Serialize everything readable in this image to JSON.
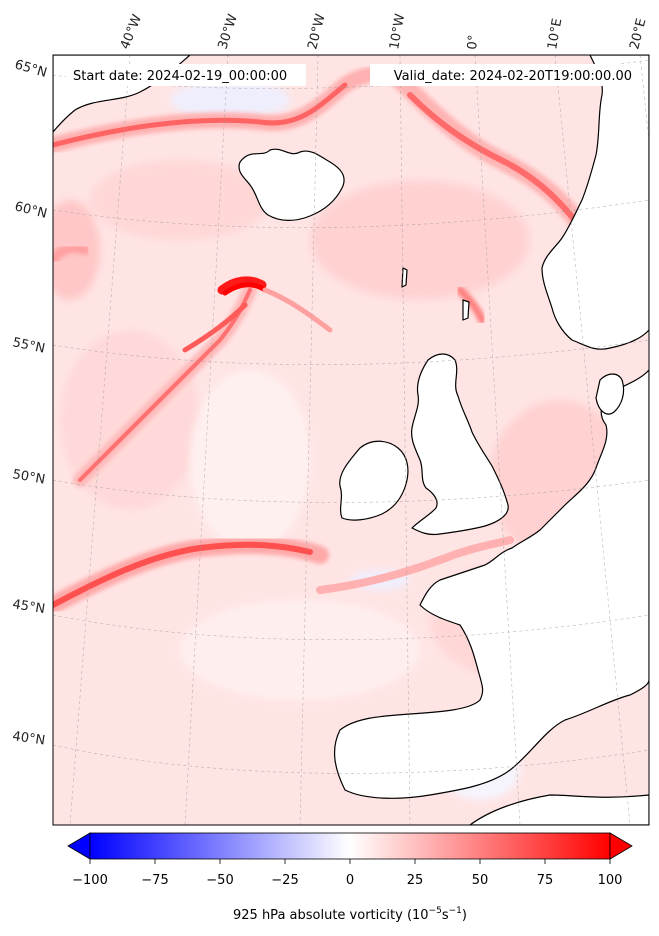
{
  "header": {
    "start_date": "Start date: 2024-02-19_00:00:00",
    "valid_date": "Valid_date: 2024-02-20T19:00:00.00"
  },
  "longitude_labels": [
    "40°W",
    "30°W",
    "20°W",
    "10°W",
    "0°",
    "10°E",
    "20°E"
  ],
  "latitude_labels": [
    "65°N",
    "60°N",
    "55°N",
    "50°N",
    "45°N",
    "40°N"
  ],
  "colorbar": {
    "ticks": [
      "−100",
      "−75",
      "−50",
      "−25",
      "0",
      "25",
      "50",
      "75",
      "100"
    ],
    "tick_values": [
      -100,
      -75,
      -50,
      -25,
      0,
      25,
      50,
      75,
      100
    ],
    "range": [
      -100,
      100
    ],
    "label_main": "925 hPa absolute vorticity (10",
    "label_exp1": "−5",
    "label_mid": "s",
    "label_exp2": "−1",
    "label_end": ")",
    "colors": {
      "negative": "#0000ff",
      "zero": "#ffffff",
      "positive": "#ff0000"
    }
  },
  "colors": {
    "land": "#ffffff",
    "background_field": "#ffe4e4",
    "coastline": "#000000"
  }
}
